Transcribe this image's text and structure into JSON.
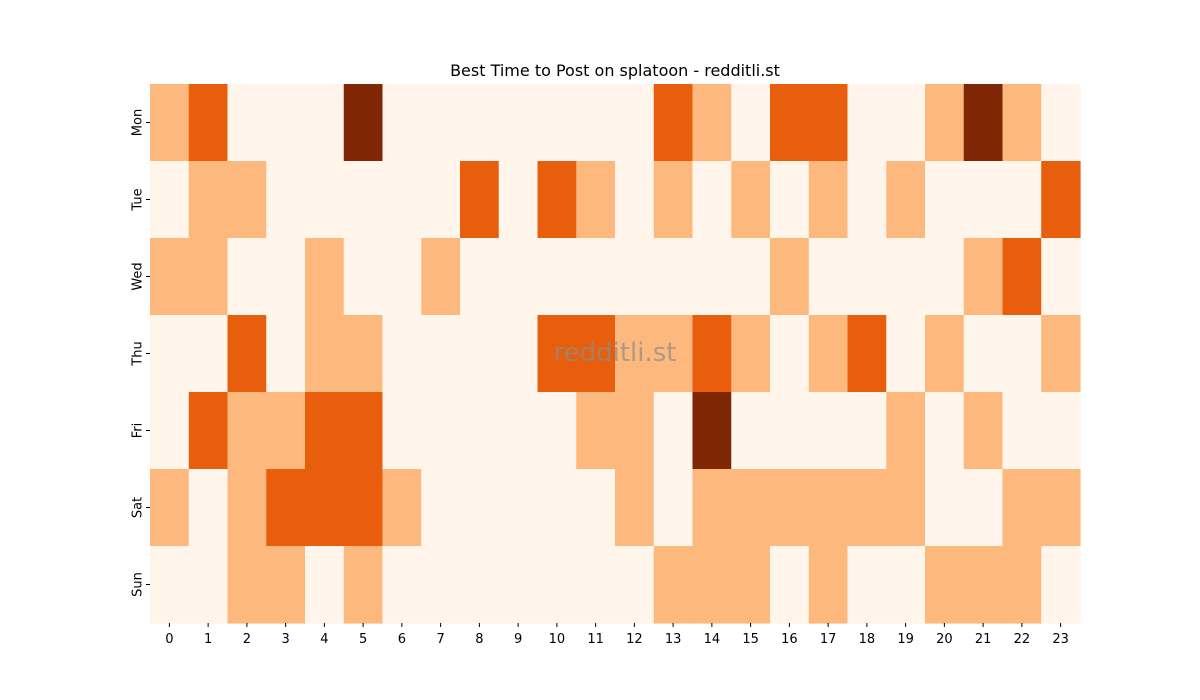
{
  "chart_data": {
    "type": "heatmap",
    "title": "Best Time to Post on splatoon - redditli.st",
    "watermark": "redditli.st",
    "x": [
      "0",
      "1",
      "2",
      "3",
      "4",
      "5",
      "6",
      "7",
      "8",
      "9",
      "10",
      "11",
      "12",
      "13",
      "14",
      "15",
      "16",
      "17",
      "18",
      "19",
      "20",
      "21",
      "22",
      "23"
    ],
    "y": [
      "Mon",
      "Tue",
      "Wed",
      "Thu",
      "Fri",
      "Sat",
      "Sun"
    ],
    "values": [
      [
        1,
        2,
        0,
        0,
        0,
        3,
        0,
        0,
        0,
        0,
        0,
        0,
        0,
        2,
        1,
        0,
        2,
        2,
        0,
        0,
        1,
        3,
        1,
        0
      ],
      [
        0,
        1,
        1,
        0,
        0,
        0,
        0,
        0,
        2,
        0,
        2,
        1,
        0,
        1,
        0,
        1,
        0,
        1,
        0,
        1,
        0,
        0,
        0,
        2
      ],
      [
        1,
        1,
        0,
        0,
        1,
        0,
        0,
        1,
        0,
        0,
        0,
        0,
        0,
        0,
        0,
        0,
        1,
        0,
        0,
        0,
        0,
        1,
        2,
        0
      ],
      [
        0,
        0,
        2,
        0,
        1,
        1,
        0,
        0,
        0,
        0,
        2,
        2,
        1,
        1,
        2,
        1,
        0,
        1,
        2,
        0,
        1,
        0,
        0,
        1
      ],
      [
        0,
        2,
        1,
        1,
        2,
        2,
        0,
        0,
        0,
        0,
        0,
        1,
        1,
        0,
        3,
        0,
        0,
        0,
        0,
        1,
        0,
        1,
        0,
        0
      ],
      [
        1,
        0,
        1,
        2,
        2,
        2,
        1,
        0,
        0,
        0,
        0,
        0,
        1,
        0,
        1,
        1,
        1,
        1,
        1,
        1,
        0,
        0,
        1,
        1
      ],
      [
        0,
        0,
        1,
        1,
        0,
        1,
        0,
        0,
        0,
        0,
        0,
        0,
        0,
        1,
        1,
        1,
        0,
        1,
        0,
        0,
        1,
        1,
        1,
        0
      ]
    ],
    "colormap": "Oranges",
    "colors": [
      "#fff5eb",
      "#fdb97d",
      "#e95e0d",
      "#7f2704"
    ]
  }
}
